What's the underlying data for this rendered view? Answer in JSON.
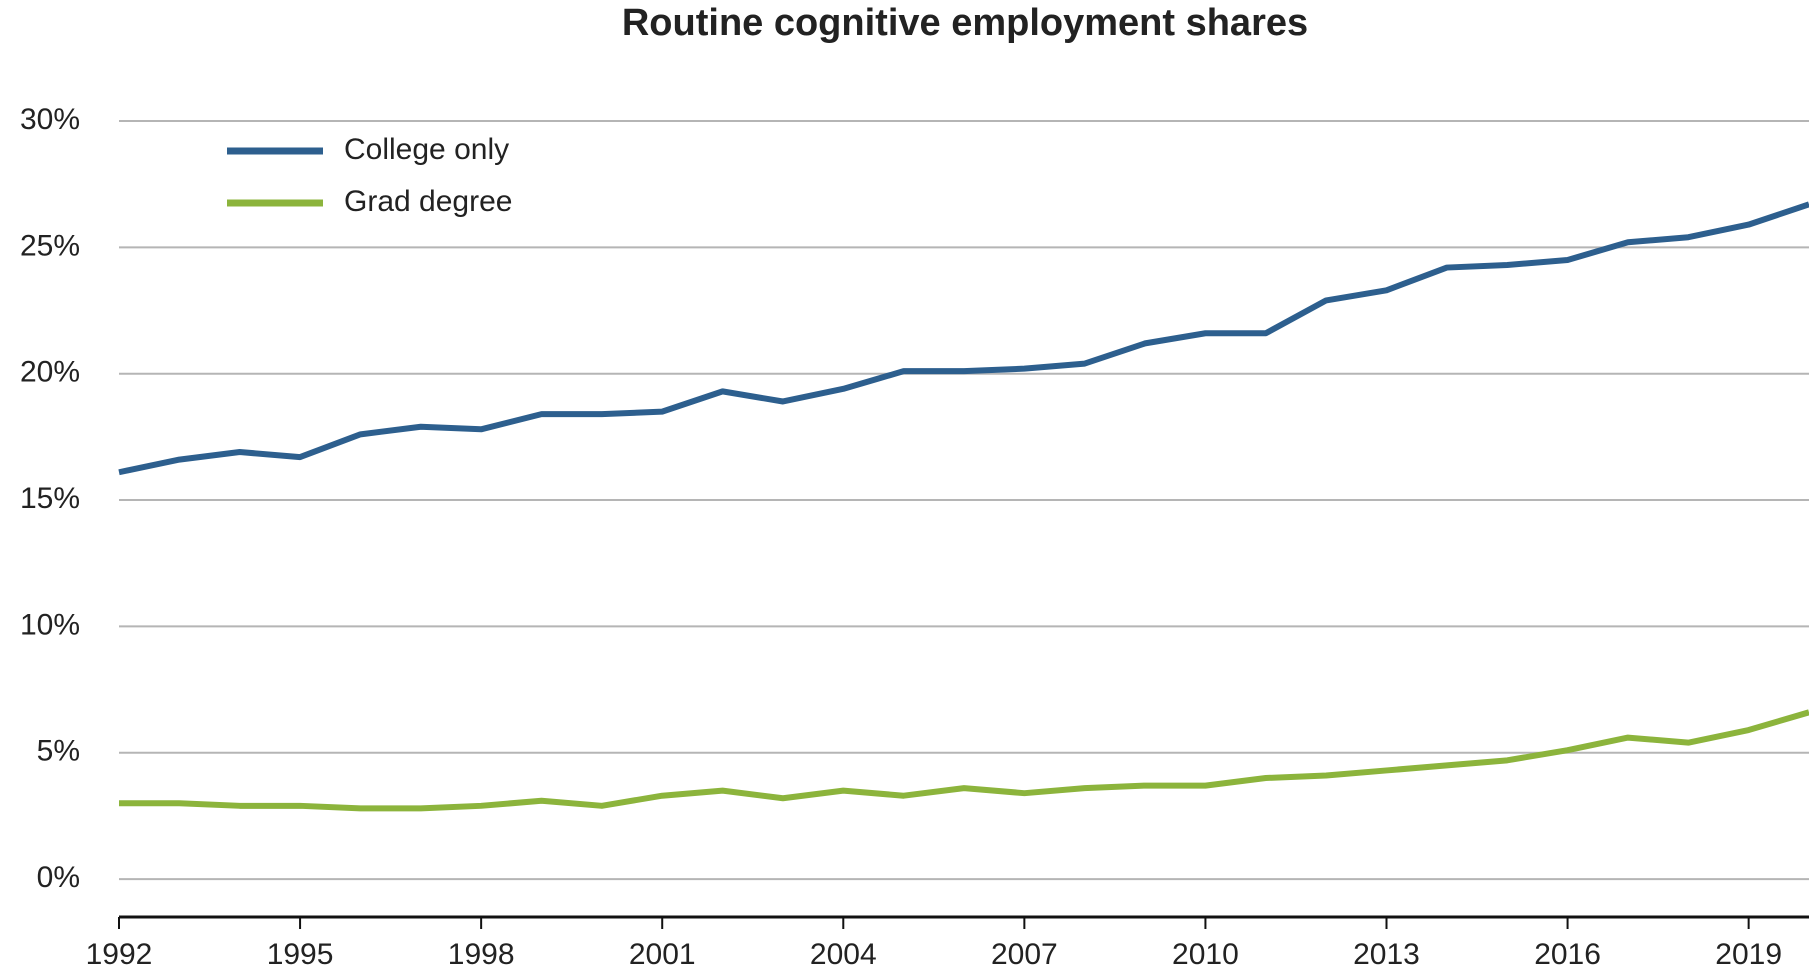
{
  "chart_data": {
    "type": "line",
    "title": "Routine cognitive employment shares",
    "x": [
      1992,
      1993,
      1994,
      1995,
      1996,
      1997,
      1998,
      1999,
      2000,
      2001,
      2002,
      2003,
      2004,
      2005,
      2006,
      2007,
      2008,
      2009,
      2010,
      2011,
      2012,
      2013,
      2014,
      2015,
      2016,
      2017,
      2018,
      2019,
      2020
    ],
    "series": [
      {
        "name": "College only",
        "color": "#2d5f8e",
        "values": [
          16.1,
          16.6,
          16.9,
          16.7,
          17.6,
          17.9,
          17.8,
          18.4,
          18.4,
          18.5,
          19.3,
          18.9,
          19.4,
          20.1,
          20.1,
          20.2,
          20.4,
          21.2,
          21.6,
          21.6,
          22.9,
          23.3,
          24.2,
          24.3,
          24.5,
          25.2,
          25.4,
          25.9,
          26.7
        ]
      },
      {
        "name": "Grad degree",
        "color": "#8cb43c",
        "values": [
          3.0,
          3.0,
          2.9,
          2.9,
          2.8,
          2.8,
          2.9,
          3.1,
          2.9,
          3.3,
          3.5,
          3.2,
          3.5,
          3.3,
          3.6,
          3.4,
          3.6,
          3.7,
          3.7,
          4.0,
          4.1,
          4.3,
          4.5,
          4.7,
          5.1,
          5.6,
          5.4,
          5.9,
          6.6
        ]
      }
    ],
    "xlim": [
      1992,
      2020
    ],
    "xticks": [
      1992,
      1995,
      1998,
      2001,
      2004,
      2007,
      2010,
      2013,
      2016,
      2019
    ],
    "ylim": [
      -1.5,
      30
    ],
    "yticks": [
      {
        "value": 0,
        "label": "0%"
      },
      {
        "value": 5,
        "label": "5%"
      },
      {
        "value": 10,
        "label": "10%"
      },
      {
        "value": 15,
        "label": "15%"
      },
      {
        "value": 20,
        "label": "20%"
      },
      {
        "value": 25,
        "label": "25%"
      },
      {
        "value": 30,
        "label": "30%"
      }
    ],
    "grid": true,
    "legend": "upper-left"
  }
}
